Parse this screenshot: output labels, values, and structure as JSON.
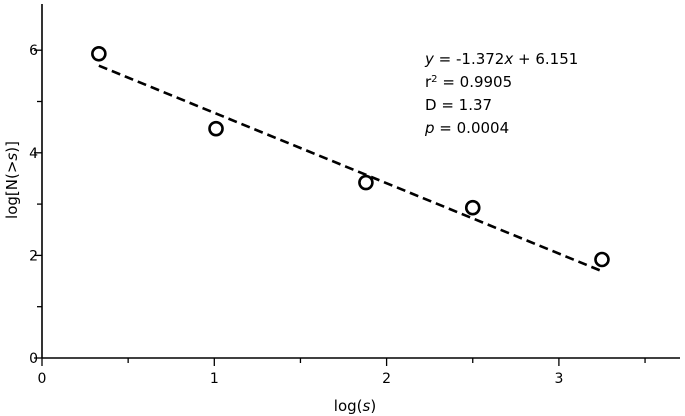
{
  "chart_data": {
    "type": "scatter",
    "title": "",
    "xlabel": "log(s)",
    "ylabel": "log[N(>s)]",
    "xlim": [
      0,
      3.7
    ],
    "ylim": [
      0,
      7
    ],
    "xticks": [
      0,
      1,
      2,
      3
    ],
    "yticks": [
      0,
      2,
      4,
      6
    ],
    "grid": false,
    "series": [
      {
        "marker": "open-circle",
        "x": [
          0.33,
          1.01,
          1.88,
          2.5,
          3.25
        ],
        "y": [
          5.93,
          4.47,
          3.42,
          2.93,
          1.92
        ]
      }
    ],
    "fit_line": {
      "style": "dashed",
      "slope": -1.372,
      "intercept": 6.151,
      "x_start": 0.33,
      "x_end": 3.25
    },
    "annotations": {
      "equation": "y = -1.372x + 6.151",
      "r2": "r² = 0.9905",
      "d": "D = 1.37",
      "p": "p = 0.0004"
    }
  }
}
